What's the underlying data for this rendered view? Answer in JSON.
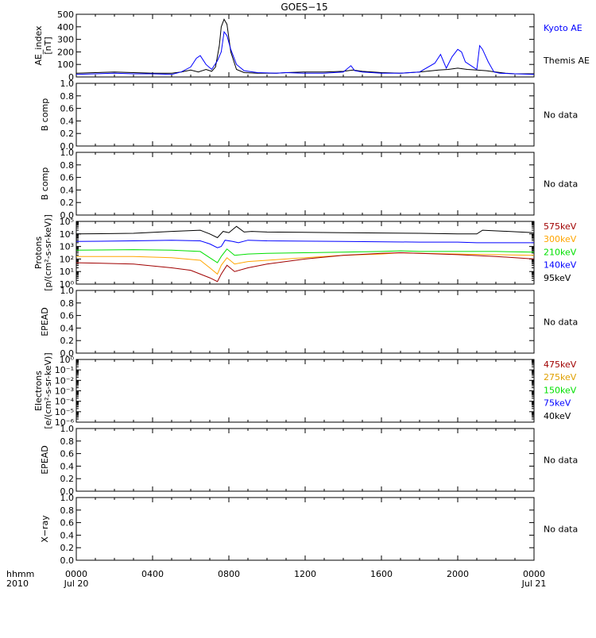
{
  "title": "GOES−15",
  "time_axis": {
    "row_label_1": "hhmm",
    "row_label_2": "2010",
    "ticks": [
      {
        "t": 0,
        "hhmm": "0000",
        "date": "Jul 20"
      },
      {
        "t": 4,
        "hhmm": "0400",
        "date": ""
      },
      {
        "t": 8,
        "hhmm": "0800",
        "date": ""
      },
      {
        "t": 12,
        "hhmm": "1200",
        "date": ""
      },
      {
        "t": 16,
        "hhmm": "1600",
        "date": ""
      },
      {
        "t": 20,
        "hhmm": "2000",
        "date": ""
      },
      {
        "t": 24,
        "hhmm": "0000",
        "date": "Jul 21"
      }
    ]
  },
  "no_data_text": "No data",
  "colors": {
    "black": "#000000",
    "blue": "#0000ff",
    "green": "#00e000",
    "orange": "#ffa500",
    "red": "#a00000",
    "gold": "#e0a000"
  },
  "chart_data": [
    {
      "type": "line",
      "ylabel_lines": [
        "AE_index",
        "[nT]"
      ],
      "ylim": [
        0,
        500
      ],
      "y_ticks": [
        {
          "v": 0,
          "label": "0"
        },
        {
          "v": 100,
          "label": "100"
        },
        {
          "v": 200,
          "label": "200"
        },
        {
          "v": 300,
          "label": "300"
        },
        {
          "v": 400,
          "label": "400"
        },
        {
          "v": 500,
          "label": "500"
        }
      ],
      "legend": [
        {
          "name": "Kyoto AE",
          "color": "#0000ff"
        },
        {
          "name": "Themis AE",
          "color": "#000000"
        }
      ],
      "series": [
        {
          "name": "Themis AE",
          "color": "#000000",
          "x": [
            0,
            1,
            2,
            3,
            4,
            5,
            5.5,
            6,
            6.4,
            6.8,
            7.1,
            7.3,
            7.5,
            7.6,
            7.75,
            7.9,
            8.1,
            8.4,
            8.8,
            9.5,
            10.5,
            11,
            12,
            13,
            14,
            14.5,
            15,
            16,
            17,
            18,
            19,
            19.5,
            20,
            20.5,
            21,
            21.5,
            22,
            22.5,
            23,
            24
          ],
          "y": [
            30,
            35,
            40,
            35,
            30,
            30,
            40,
            55,
            40,
            60,
            45,
            80,
            250,
            400,
            460,
            420,
            200,
            60,
            35,
            30,
            30,
            35,
            40,
            40,
            45,
            55,
            45,
            35,
            30,
            40,
            55,
            60,
            70,
            60,
            55,
            50,
            40,
            30,
            25,
            25
          ]
        },
        {
          "name": "Kyoto AE",
          "color": "#0000ff",
          "x": [
            0,
            1,
            2,
            3,
            4,
            5,
            5.5,
            6,
            6.3,
            6.5,
            6.8,
            7.1,
            7.4,
            7.6,
            7.75,
            7.9,
            8.1,
            8.4,
            8.8,
            9.5,
            10.5,
            11,
            12,
            13,
            14,
            14.4,
            14.6,
            15,
            16,
            17,
            18,
            18.8,
            19.1,
            19.4,
            19.7,
            20,
            20.2,
            20.4,
            20.7,
            21,
            21.15,
            21.3,
            21.6,
            21.9,
            22.2,
            23,
            24
          ],
          "y": [
            20,
            25,
            30,
            25,
            25,
            20,
            40,
            80,
            150,
            170,
            100,
            60,
            130,
            200,
            360,
            330,
            220,
            100,
            50,
            35,
            30,
            35,
            30,
            30,
            40,
            90,
            50,
            40,
            30,
            30,
            40,
            110,
            180,
            70,
            160,
            220,
            200,
            120,
            90,
            60,
            250,
            220,
            120,
            40,
            30,
            25,
            20
          ]
        }
      ]
    },
    {
      "type": "line",
      "ylabel_lines": [
        "B comp"
      ],
      "ylim": [
        0,
        1
      ],
      "y_ticks": [
        {
          "v": 0,
          "label": "0.0"
        },
        {
          "v": 0.2,
          "label": "0.2"
        },
        {
          "v": 0.4,
          "label": "0.4"
        },
        {
          "v": 0.6,
          "label": "0.6"
        },
        {
          "v": 0.8,
          "label": "0.8"
        },
        {
          "v": 1,
          "label": "1.0"
        }
      ],
      "no_data": true,
      "series": []
    },
    {
      "type": "line",
      "ylabel_lines": [
        "B comp"
      ],
      "ylim": [
        0,
        1
      ],
      "y_ticks": [
        {
          "v": 0,
          "label": "0.0"
        },
        {
          "v": 0.2,
          "label": "0.2"
        },
        {
          "v": 0.4,
          "label": "0.4"
        },
        {
          "v": 0.6,
          "label": "0.6"
        },
        {
          "v": 0.8,
          "label": "0.8"
        },
        {
          "v": 1,
          "label": "1.0"
        }
      ],
      "no_data": true,
      "series": []
    },
    {
      "type": "line",
      "log_scale": true,
      "ylabel_lines": [
        "Protons",
        "[p/(cm²-s-sr-keV)]"
      ],
      "ylim": [
        0,
        5
      ],
      "y_ticks": [
        {
          "v": 0,
          "label": "10⁰"
        },
        {
          "v": 1,
          "label": "10¹"
        },
        {
          "v": 2,
          "label": "10²"
        },
        {
          "v": 3,
          "label": "10³"
        },
        {
          "v": 4,
          "label": "10⁴"
        },
        {
          "v": 5,
          "label": "10⁵"
        }
      ],
      "legend": [
        {
          "name": "575keV",
          "color": "#a00000"
        },
        {
          "name": "300keV",
          "color": "#ffa500"
        },
        {
          "name": "210keV",
          "color": "#00e000"
        },
        {
          "name": "140keV",
          "color": "#0000ff"
        },
        {
          "name": "95keV",
          "color": "#000000"
        }
      ],
      "series": [
        {
          "name": "95keV",
          "color": "#000000",
          "x": [
            0,
            3,
            5,
            6.5,
            7,
            7.4,
            7.7,
            8,
            8.4,
            8.8,
            9.2,
            10,
            14,
            18,
            20,
            21,
            21.3,
            24
          ],
          "y": [
            4.0,
            4.05,
            4.2,
            4.3,
            4.0,
            3.7,
            4.2,
            4.1,
            4.6,
            4.15,
            4.2,
            4.15,
            4.1,
            4.05,
            4.0,
            4.0,
            4.3,
            4.1
          ]
        },
        {
          "name": "140keV",
          "color": "#0000ff",
          "x": [
            0,
            3,
            5,
            6.5,
            7,
            7.4,
            7.6,
            7.8,
            8.2,
            8.5,
            9,
            10,
            14,
            18,
            20,
            21,
            24
          ],
          "y": [
            3.4,
            3.45,
            3.5,
            3.45,
            3.2,
            2.9,
            3.0,
            3.5,
            3.4,
            3.3,
            3.5,
            3.45,
            3.4,
            3.35,
            3.35,
            3.3,
            3.3
          ]
        },
        {
          "name": "210keV",
          "color": "#00e000",
          "x": [
            0,
            3,
            5,
            6.5,
            7,
            7.4,
            7.6,
            7.9,
            8.3,
            9,
            10,
            12,
            14,
            16,
            17,
            18,
            20,
            22,
            24
          ],
          "y": [
            2.7,
            2.75,
            2.7,
            2.6,
            2.1,
            1.7,
            2.2,
            2.8,
            2.3,
            2.4,
            2.45,
            2.5,
            2.55,
            2.6,
            2.65,
            2.6,
            2.6,
            2.6,
            2.55
          ]
        },
        {
          "name": "300keV",
          "color": "#ffa500",
          "x": [
            0,
            3,
            5,
            6.5,
            7,
            7.4,
            7.6,
            7.9,
            8.3,
            9,
            10,
            12,
            14,
            16,
            17,
            18,
            20,
            22,
            24
          ],
          "y": [
            2.2,
            2.2,
            2.1,
            1.9,
            1.3,
            0.8,
            1.5,
            2.1,
            1.6,
            1.8,
            1.9,
            2.1,
            2.3,
            2.4,
            2.5,
            2.45,
            2.4,
            2.35,
            2.3
          ]
        },
        {
          "name": "575keV",
          "color": "#a00000",
          "x": [
            0,
            3,
            5,
            6,
            6.5,
            7,
            7.4,
            7.6,
            7.9,
            8.3,
            9,
            10,
            12,
            14,
            16,
            17,
            18,
            20,
            22,
            24
          ],
          "y": [
            1.7,
            1.6,
            1.3,
            1.1,
            0.8,
            0.5,
            0.2,
            0.8,
            1.5,
            1.0,
            1.3,
            1.6,
            2.0,
            2.3,
            2.45,
            2.5,
            2.45,
            2.35,
            2.2,
            2.0
          ]
        }
      ]
    },
    {
      "type": "line",
      "ylabel_lines": [
        "EPEAD"
      ],
      "ylim": [
        0,
        1
      ],
      "y_ticks": [
        {
          "v": 0,
          "label": "0.0"
        },
        {
          "v": 0.2,
          "label": "0.2"
        },
        {
          "v": 0.4,
          "label": "0.4"
        },
        {
          "v": 0.6,
          "label": "0.6"
        },
        {
          "v": 0.8,
          "label": "0.8"
        },
        {
          "v": 1,
          "label": "1.0"
        }
      ],
      "no_data": true,
      "series": []
    },
    {
      "type": "line",
      "log_scale": true,
      "ylabel_lines": [
        "Electrons",
        "[e/(cm²-s-sr-keV)]"
      ],
      "ylim": [
        -6,
        0
      ],
      "y_ticks": [
        {
          "v": 0,
          "label": "10⁰"
        },
        {
          "v": -1,
          "label": "10⁻¹"
        },
        {
          "v": -2,
          "label": "10⁻²"
        },
        {
          "v": -3,
          "label": "10⁻³"
        },
        {
          "v": -4,
          "label": "10⁻⁴"
        },
        {
          "v": -5,
          "label": "10⁻⁵"
        },
        {
          "v": -6,
          "label": "10⁻⁶"
        }
      ],
      "legend": [
        {
          "name": "475keV",
          "color": "#a00000"
        },
        {
          "name": "275keV",
          "color": "#e0a000"
        },
        {
          "name": "150keV",
          "color": "#00e000"
        },
        {
          "name": "75keV",
          "color": "#0000ff"
        },
        {
          "name": "40keV",
          "color": "#000000"
        }
      ],
      "series": []
    },
    {
      "type": "line",
      "ylabel_lines": [
        "EPEAD"
      ],
      "ylim": [
        0,
        1
      ],
      "y_ticks": [
        {
          "v": 0,
          "label": "0.0"
        },
        {
          "v": 0.2,
          "label": "0.2"
        },
        {
          "v": 0.4,
          "label": "0.4"
        },
        {
          "v": 0.6,
          "label": "0.6"
        },
        {
          "v": 0.8,
          "label": "0.8"
        },
        {
          "v": 1,
          "label": "1.0"
        }
      ],
      "no_data": true,
      "series": []
    },
    {
      "type": "line",
      "ylabel_lines": [
        "X−ray"
      ],
      "ylim": [
        0,
        1
      ],
      "y_ticks": [
        {
          "v": 0,
          "label": "0.0"
        },
        {
          "v": 0.2,
          "label": "0.2"
        },
        {
          "v": 0.4,
          "label": "0.4"
        },
        {
          "v": 0.6,
          "label": "0.6"
        },
        {
          "v": 0.8,
          "label": "0.8"
        },
        {
          "v": 1,
          "label": "1.0"
        }
      ],
      "no_data": true,
      "series": []
    }
  ]
}
